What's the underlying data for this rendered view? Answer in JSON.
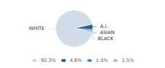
{
  "chart_data": {
    "type": "pie",
    "categories": [
      "WHITE",
      "A.I.",
      "ASIAN",
      "BLACK"
    ],
    "values": [
      92.3,
      4.6,
      1.5,
      1.5
    ],
    "value_labels": [
      "92.3%",
      "4.6%",
      "1.5%",
      "1.5%"
    ],
    "colors": [
      "#d0dde8",
      "#2e5f8a",
      "#5b8db8",
      "#a8bfcf"
    ],
    "legend": "bottom"
  }
}
